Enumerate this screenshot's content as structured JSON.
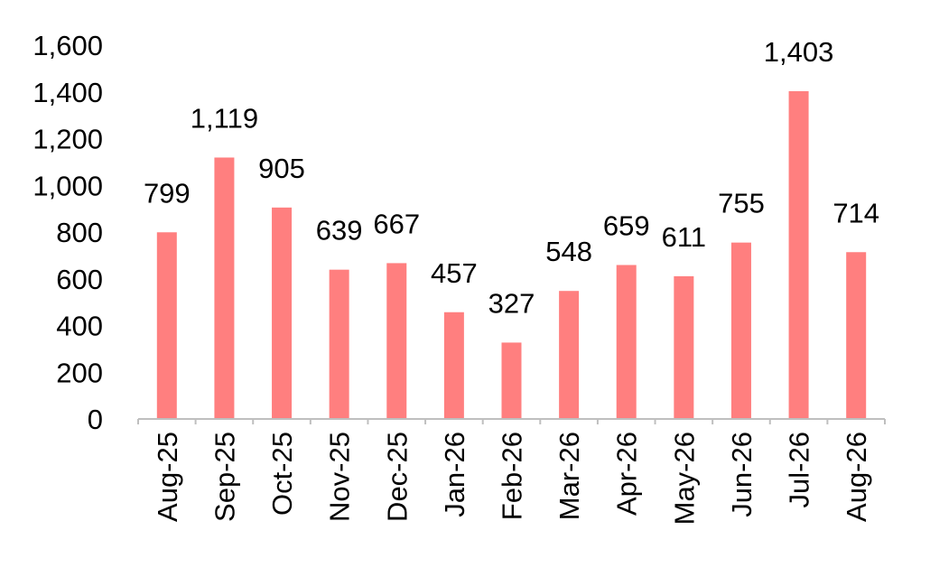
{
  "chart_data": {
    "type": "bar",
    "title": "",
    "xlabel": "",
    "ylabel": "",
    "categories": [
      "Aug-25",
      "Sep-25",
      "Oct-25",
      "Nov-25",
      "Dec-25",
      "Jan-26",
      "Feb-26",
      "Mar-26",
      "Apr-26",
      "May-26",
      "Jun-26",
      "Jul-26",
      "Aug-26"
    ],
    "values": [
      799,
      1119,
      905,
      639,
      667,
      457,
      327,
      548,
      659,
      611,
      755,
      1403,
      714
    ],
    "value_labels": [
      "799",
      "1,119",
      "905",
      "639",
      "667",
      "457",
      "327",
      "548",
      "659",
      "611",
      "755",
      "1,403",
      "714"
    ],
    "ylim": [
      0,
      1600
    ],
    "yticks": [
      0,
      200,
      400,
      600,
      800,
      1000,
      1200,
      1400,
      1600
    ],
    "ytick_labels": [
      "0",
      "200",
      "400",
      "600",
      "800",
      "1,000",
      "1,200",
      "1,400",
      "1,600"
    ],
    "bar_color": "#FF7F7F",
    "axis_color": "#BFBFBF",
    "grid": false,
    "legend": false,
    "x_label_rotation": "vertical"
  }
}
